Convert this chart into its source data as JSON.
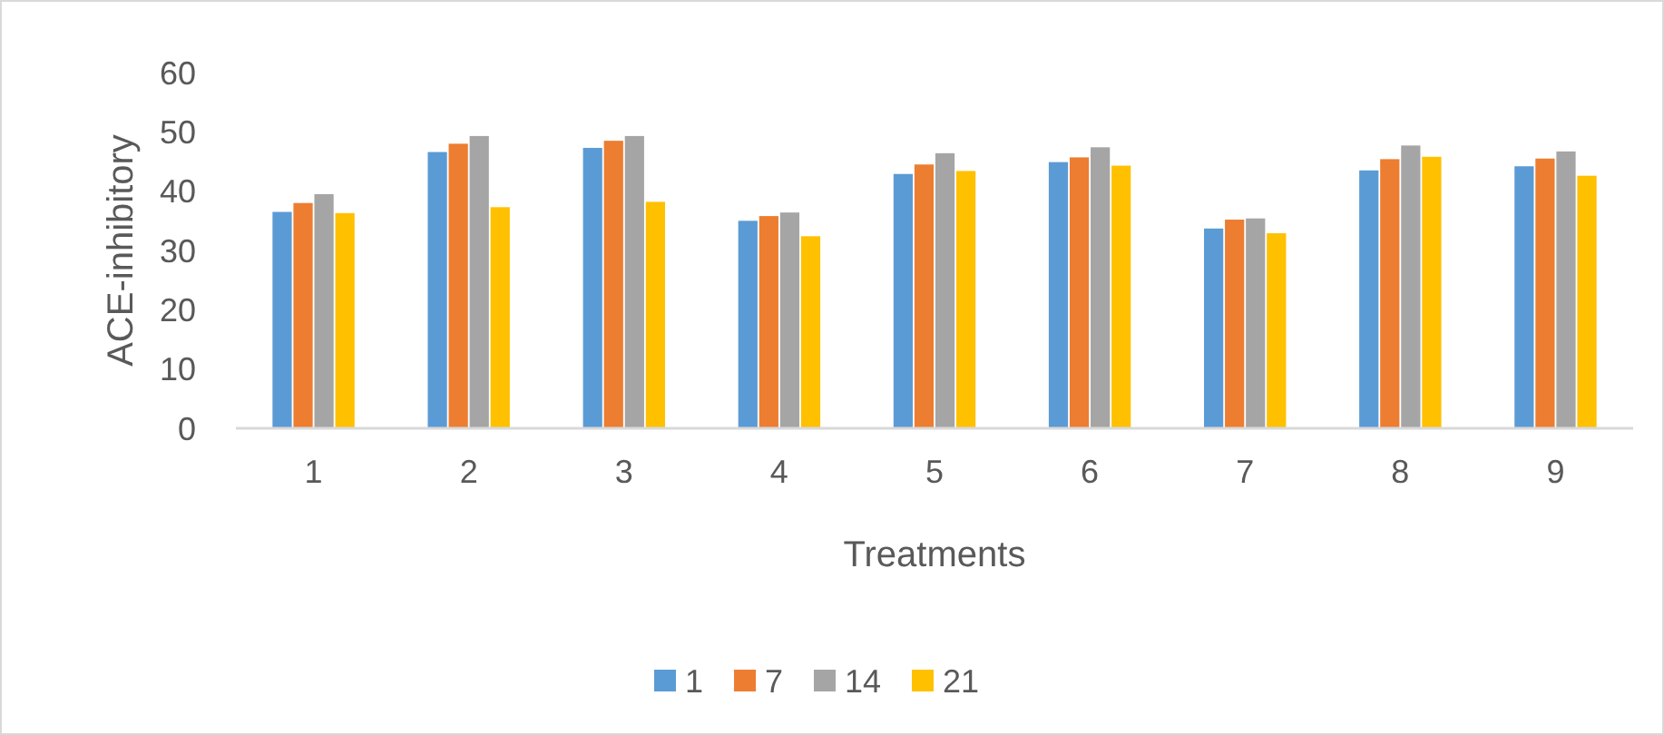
{
  "chart_data": {
    "type": "bar",
    "xlabel": "Treatments",
    "ylabel": "ACE-inhibitory",
    "categories": [
      "1",
      "2",
      "3",
      "4",
      "5",
      "6",
      "7",
      "8",
      "9"
    ],
    "series": [
      {
        "name": "1",
        "color": "#5b9bd5",
        "values": [
          36.5,
          46.6,
          47.3,
          35,
          42.9,
          44.9,
          33.7,
          43.5,
          44.2
        ]
      },
      {
        "name": "7",
        "color": "#ed7d31",
        "values": [
          38,
          48,
          48.5,
          35.8,
          44.5,
          45.7,
          35.2,
          45.4,
          45.5
        ]
      },
      {
        "name": "14",
        "color": "#a5a5a5",
        "values": [
          39.5,
          49.3,
          49.3,
          36.4,
          46.4,
          47.4,
          35.4,
          47.7,
          46.7
        ]
      },
      {
        "name": "21",
        "color": "#ffc000",
        "values": [
          36.3,
          37.3,
          38.2,
          32.4,
          43.4,
          44.3,
          32.9,
          45.8,
          42.6
        ]
      }
    ],
    "ylim": [
      0,
      60
    ],
    "yticks": [
      0,
      10,
      20,
      30,
      40,
      50,
      60
    ],
    "grid": false,
    "legend": "bottom"
  }
}
